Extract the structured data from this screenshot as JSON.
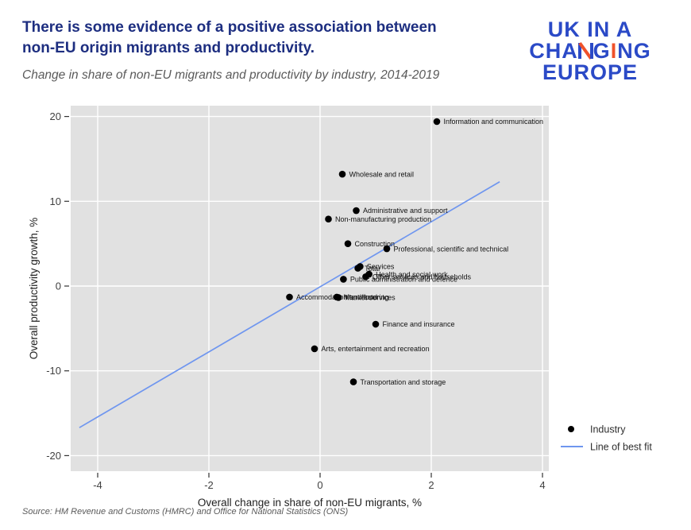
{
  "header": {
    "title_lines": [
      "There is some evidence of a positive association between",
      "non-EU origin migrants and productivity."
    ],
    "subtitle": "Change in share of non-EU migrants and productivity by industry, 2014-2019",
    "title_color": "#1d2e80"
  },
  "logo": {
    "line1": "UK IN A",
    "line2_part1": "CHA",
    "line2_part2": "G",
    "line2_i": "I",
    "line2_part3": "NG",
    "line3": "EUROPE",
    "blue": "#2b4ac7",
    "orange": "#f0522b"
  },
  "source": "Source: HM Revenue and Customs (HMRC) and Office for National Statistics (ONS)",
  "chart_data": {
    "type": "scatter",
    "xlabel": "Overall change in share of non-EU migrants, %",
    "ylabel": "Overall productivity growth, %",
    "xticks": [
      -4,
      -2,
      0,
      2,
      4
    ],
    "yticks": [
      -20,
      -10,
      0,
      10,
      20
    ],
    "xlim": [
      -4.5,
      4.1
    ],
    "ylim": [
      -21.8,
      21.3
    ],
    "grid": true,
    "panel_color": "#e1e1e1",
    "grid_color": "#ffffff",
    "point_color": "#000000",
    "line_color": "#6f96ef",
    "tick_text_color": "#404040",
    "axis_title_color": "#1f1f1f",
    "legend_position": "right-bottom-outside",
    "legend": [
      {
        "label": "Industry",
        "type": "point"
      },
      {
        "label": "Line of best fit",
        "type": "line"
      }
    ],
    "points": [
      {
        "label": "Information and communication",
        "x": 2.1,
        "y": 19.4
      },
      {
        "label": "Wholesale and retail",
        "x": 0.4,
        "y": 13.2
      },
      {
        "label": "Administrative and support",
        "x": 0.65,
        "y": 8.9
      },
      {
        "label": "Non-manufacturing production",
        "x": 0.15,
        "y": 7.9
      },
      {
        "label": "Construction",
        "x": 0.5,
        "y": 5.0
      },
      {
        "label": "Professional, scientific and technical",
        "x": 1.2,
        "y": 4.4
      },
      {
        "label": "Services",
        "x": 0.72,
        "y": 2.3
      },
      {
        "label": "Total",
        "x": 0.68,
        "y": 2.1
      },
      {
        "label": "Health and social work",
        "x": 0.88,
        "y": 1.4
      },
      {
        "label": "Other services and households",
        "x": 0.82,
        "y": 1.1
      },
      {
        "label": "Public administration and defence",
        "x": 0.42,
        "y": 0.8
      },
      {
        "label": "Accommodation and food",
        "x": -0.55,
        "y": -1.3
      },
      {
        "label": "Manufacturing",
        "x": 0.3,
        "y": -1.3
      },
      {
        "label": "Market services",
        "x": 0.33,
        "y": -1.35
      },
      {
        "label": "Finance and insurance",
        "x": 1.0,
        "y": -4.5
      },
      {
        "label": "Arts, entertainment and recreation",
        "x": -0.1,
        "y": -7.4
      },
      {
        "label": "Transportation and storage",
        "x": 0.6,
        "y": -11.3
      }
    ],
    "fit_line": {
      "x1": -4.33,
      "y1": -16.7,
      "x2": 3.23,
      "y2": 12.3
    }
  }
}
